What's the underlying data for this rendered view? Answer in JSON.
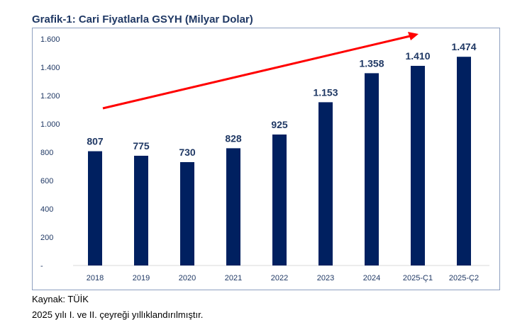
{
  "chart_data": {
    "type": "bar",
    "title": "Grafik-1: Cari Fiyatlarla GSYH (Milyar Dolar)",
    "categories": [
      "2018",
      "2019",
      "2020",
      "2021",
      "2022",
      "2023",
      "2024",
      "2025-Ç1",
      "2025-Ç2"
    ],
    "values": [
      807,
      775,
      730,
      828,
      925,
      1153,
      1358,
      1410,
      1474
    ],
    "data_labels": [
      "807",
      "775",
      "730",
      "828",
      "925",
      "1.153",
      "1.358",
      "1.410",
      "1.474"
    ],
    "ylim": [
      0,
      1600
    ],
    "yticks": [
      0,
      200,
      400,
      600,
      800,
      1000,
      1200,
      1400,
      1600
    ],
    "ytick_labels": [
      "-",
      "200",
      "400",
      "600",
      "800",
      "1.000",
      "1.200",
      "1.400",
      "1.600"
    ],
    "grid": false,
    "bar_color": "#002060",
    "trend_arrow_color": "#ff0000"
  },
  "notes": {
    "source": "Kaynak: TÜİK",
    "footnote": "2025 yılı I. ve II. çeyreği yıllıklandırılmıştır."
  }
}
